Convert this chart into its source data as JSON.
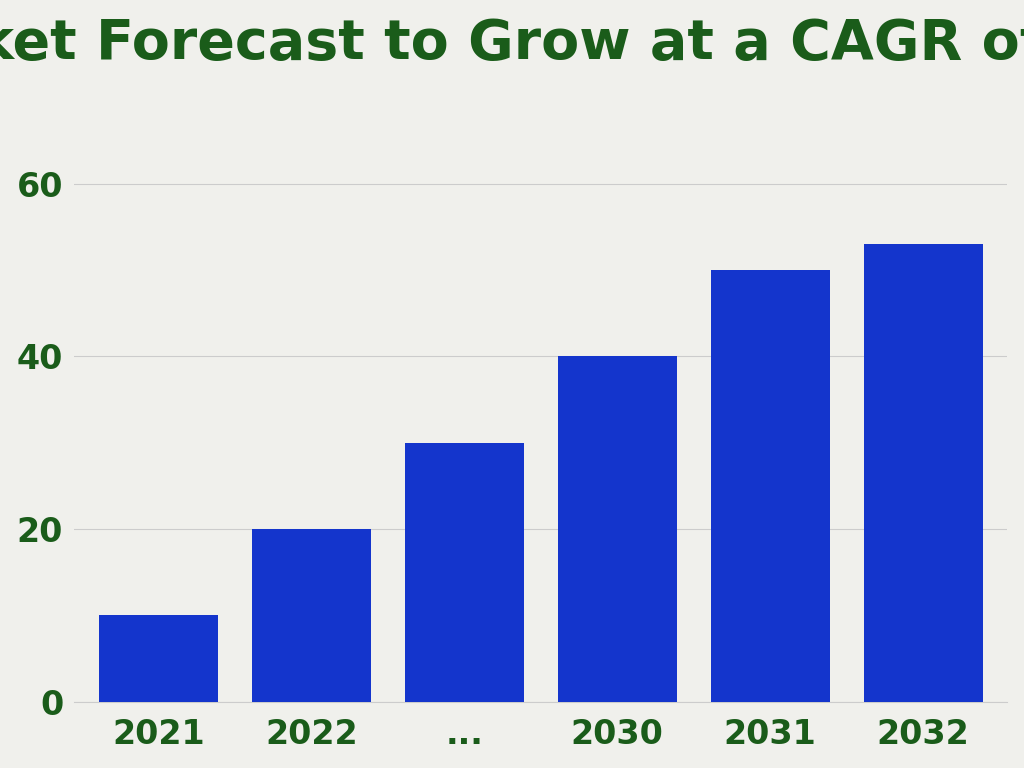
{
  "title": "Market Forecast to Grow at a CAGR of X.X%",
  "title_color": "#1a5c1a",
  "title_fontsize": 40,
  "categories": [
    "2021",
    "2022",
    "...",
    "2030",
    "2031",
    "2032"
  ],
  "values": [
    10,
    20,
    30,
    40,
    50,
    53
  ],
  "bar_color": "#1435cc",
  "background_color": "#f0f0ec",
  "yticks": [
    0,
    20,
    40,
    60
  ],
  "ylim": [
    0,
    70
  ],
  "grid_color": "#cccccc",
  "tick_color": "#1a5c1a",
  "tick_fontsize": 24,
  "bar_width": 0.78,
  "figsize": [
    10.24,
    7.68
  ],
  "dpi": 100
}
